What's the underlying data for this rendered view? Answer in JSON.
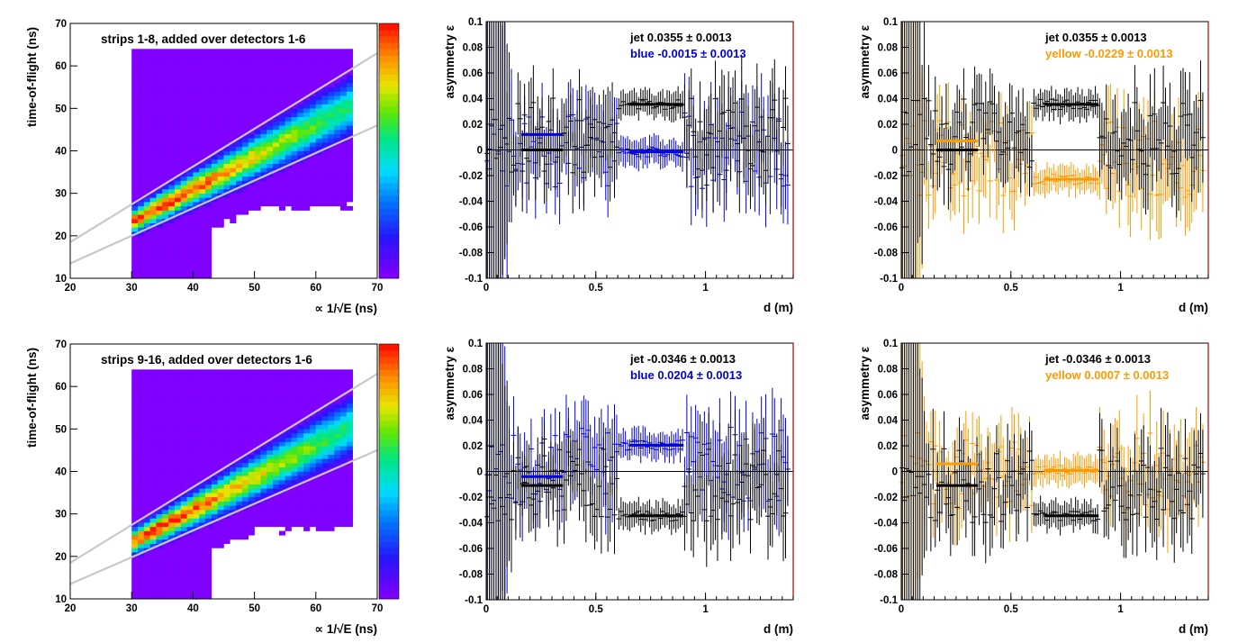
{
  "colors": {
    "blue": "#0000dd",
    "yellow": "#ff9900",
    "black": "#000000",
    "frame": "#000000",
    "fit_line": "#c8c8c8",
    "hist_background": "#7f00ff"
  },
  "chart_data": [
    {
      "id": "tof-top",
      "type": "heatmap",
      "title": "strips 1-8, added over detectors 1-6",
      "xlabel": "∝ 1/√E (ns)",
      "ylabel": "time-of-flight (ns)",
      "xlim": [
        20,
        70
      ],
      "ylim": [
        10,
        70
      ],
      "x_ticks": [
        "20",
        "30",
        "40",
        "50",
        "60",
        "70"
      ],
      "y_ticks": [
        "10",
        "20",
        "30",
        "40",
        "50",
        "60",
        "70"
      ],
      "colorbar": "rainbow",
      "band": {
        "x_start": 30,
        "x_end": 66,
        "peak": [
          35,
          27
        ]
      },
      "fit_lines": [
        {
          "x": [
            20,
            70
          ],
          "y": [
            18.5,
            63
          ]
        },
        {
          "x": [
            20,
            70
          ],
          "y": [
            13.5,
            46
          ]
        }
      ]
    },
    {
      "id": "asym-blue-top",
      "type": "scatter",
      "xlabel": "d (m)",
      "ylabel": "asymmetry ε",
      "xlim": [
        0,
        1.4
      ],
      "ylim": [
        -0.1,
        0.1
      ],
      "x_ticks": [
        "0",
        "0.5",
        "1"
      ],
      "y_ticks": [
        "-0.1",
        "-0.08",
        "-0.06",
        "-0.04",
        "-0.02",
        "0",
        "0.02",
        "0.04",
        "0.06",
        "0.08",
        "0.1"
      ],
      "legend": [
        {
          "text": "jet  0.0355 ± 0.0013",
          "color": "black"
        },
        {
          "text": "blue -0.0015 ± 0.0013",
          "color": "blue"
        }
      ],
      "series": [
        {
          "name": "jet",
          "color": "black",
          "seed": 11,
          "mean": 0.0355,
          "wide": [
            0.6,
            0.9
          ],
          "fits": [
            {
              "x": [
                0.16,
                0.35
              ],
              "y": 0.0
            },
            {
              "x": [
                0.65,
                0.9
              ],
              "y": 0.0355
            }
          ]
        },
        {
          "name": "blue",
          "color": "blue",
          "seed": 23,
          "mean": -0.0015,
          "wide": [
            0.6,
            0.9
          ],
          "fits": [
            {
              "x": [
                0.16,
                0.35
              ],
              "y": 0.012
            },
            {
              "x": [
                0.65,
                0.9
              ],
              "y": -0.0015
            }
          ]
        }
      ]
    },
    {
      "id": "asym-yellow-top",
      "type": "scatter",
      "xlabel": "d (m)",
      "ylabel": "asymmetry ε",
      "xlim": [
        0,
        1.4
      ],
      "ylim": [
        -0.1,
        0.1
      ],
      "x_ticks": [
        "0",
        "0.5",
        "1"
      ],
      "y_ticks": [
        "-0.1",
        "-0.08",
        "-0.06",
        "-0.04",
        "-0.02",
        "0",
        "0.02",
        "0.04",
        "0.06",
        "0.08",
        "0.1"
      ],
      "legend": [
        {
          "text": "jet  0.0355 ± 0.0013",
          "color": "black"
        },
        {
          "text": "yellow -0.0229 ± 0.0013",
          "color": "yellow"
        }
      ],
      "series": [
        {
          "name": "jet",
          "color": "black",
          "seed": 31,
          "mean": 0.0355,
          "wide": [
            0.6,
            0.9
          ],
          "fits": [
            {
              "x": [
                0.16,
                0.35
              ],
              "y": 0.0
            },
            {
              "x": [
                0.65,
                0.9
              ],
              "y": 0.0355
            }
          ]
        },
        {
          "name": "yellow",
          "color": "yellow",
          "seed": 47,
          "mean": -0.0229,
          "wide": [
            0.6,
            0.9
          ],
          "fits": [
            {
              "x": [
                0.16,
                0.35
              ],
              "y": 0.007
            },
            {
              "x": [
                0.65,
                0.9
              ],
              "y": -0.0229
            }
          ]
        }
      ]
    },
    {
      "id": "tof-bottom",
      "type": "heatmap",
      "title": "strips 9-16, added over detectors 1-6",
      "xlabel": "∝ 1/√E (ns)",
      "ylabel": "time-of-flight (ns)",
      "xlim": [
        20,
        70
      ],
      "ylim": [
        10,
        70
      ],
      "x_ticks": [
        "20",
        "30",
        "40",
        "50",
        "60",
        "70"
      ],
      "y_ticks": [
        "10",
        "20",
        "30",
        "40",
        "50",
        "60",
        "70"
      ],
      "colorbar": "rainbow",
      "band": {
        "x_start": 30,
        "x_end": 66,
        "peak": [
          35,
          25.5
        ]
      },
      "fit_lines": [
        {
          "x": [
            20,
            70
          ],
          "y": [
            18.5,
            63
          ]
        },
        {
          "x": [
            20,
            70
          ],
          "y": [
            13.5,
            45
          ]
        }
      ]
    },
    {
      "id": "asym-blue-bottom",
      "type": "scatter",
      "xlabel": "d (m)",
      "ylabel": "asymmetry ε",
      "xlim": [
        0,
        1.4
      ],
      "ylim": [
        -0.1,
        0.1
      ],
      "x_ticks": [
        "0",
        "0.5",
        "1"
      ],
      "y_ticks": [
        "-0.1",
        "-0.08",
        "-0.06",
        "-0.04",
        "-0.02",
        "0",
        "0.02",
        "0.04",
        "0.06",
        "0.08",
        "0.1"
      ],
      "legend": [
        {
          "text": "jet -0.0346 ± 0.0013",
          "color": "black"
        },
        {
          "text": "blue  0.0204 ± 0.0013",
          "color": "blue"
        }
      ],
      "series": [
        {
          "name": "jet",
          "color": "black",
          "seed": 53,
          "mean": -0.0346,
          "wide": [
            0.6,
            0.9
          ],
          "fits": [
            {
              "x": [
                0.16,
                0.35
              ],
              "y": -0.011
            },
            {
              "x": [
                0.65,
                0.9
              ],
              "y": -0.0346
            }
          ]
        },
        {
          "name": "blue",
          "color": "blue",
          "seed": 67,
          "mean": 0.0204,
          "wide": [
            0.6,
            0.9
          ],
          "fits": [
            {
              "x": [
                0.16,
                0.35
              ],
              "y": -0.004
            },
            {
              "x": [
                0.65,
                0.9
              ],
              "y": 0.0204
            }
          ]
        }
      ]
    },
    {
      "id": "asym-yellow-bottom",
      "type": "scatter",
      "xlabel": "d (m)",
      "ylabel": "asymmetry ε",
      "xlim": [
        0,
        1.4
      ],
      "ylim": [
        -0.1,
        0.1
      ],
      "x_ticks": [
        "0",
        "0.5",
        "1"
      ],
      "y_ticks": [
        "-0.1",
        "-0.08",
        "-0.06",
        "-0.04",
        "-0.02",
        "0",
        "0.02",
        "0.04",
        "0.06",
        "0.08",
        "0.1"
      ],
      "legend": [
        {
          "text": "jet -0.0346 ± 0.0013",
          "color": "black"
        },
        {
          "text": "yellow  0.0007 ± 0.0013",
          "color": "yellow"
        }
      ],
      "series": [
        {
          "name": "jet",
          "color": "black",
          "seed": 71,
          "mean": -0.0346,
          "wide": [
            0.6,
            0.9
          ],
          "fits": [
            {
              "x": [
                0.16,
                0.35
              ],
              "y": -0.011
            },
            {
              "x": [
                0.65,
                0.9
              ],
              "y": -0.0346
            }
          ]
        },
        {
          "name": "yellow",
          "color": "yellow",
          "seed": 89,
          "mean": 0.0007,
          "wide": [
            0.6,
            0.9
          ],
          "fits": [
            {
              "x": [
                0.16,
                0.35
              ],
              "y": 0.006
            },
            {
              "x": [
                0.65,
                0.9
              ],
              "y": 0.0007
            }
          ]
        }
      ]
    }
  ]
}
